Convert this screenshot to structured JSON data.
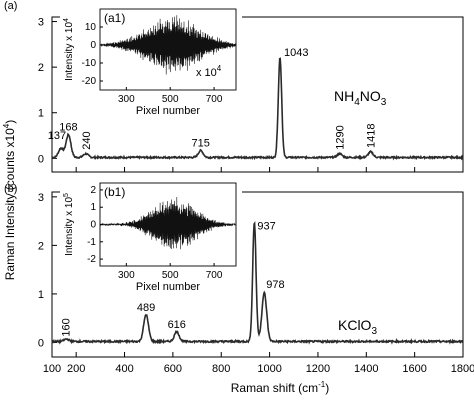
{
  "figure": {
    "ylabel": "Raman Intensity (counts x10",
    "ylabel_exp": "4",
    "ylabel_close": ")",
    "xlabel": "Raman shift (cm",
    "xlabel_exp": "-1",
    "xlabel_close": ")"
  },
  "chart_data": [
    {
      "type": "line",
      "panel_label": "(a)",
      "compound": {
        "base1": "NH",
        "sub1": "4",
        "base2": "NO",
        "sub2": "3"
      },
      "xlim": [
        100,
        1800
      ],
      "ylim": [
        -0.3,
        3.1
      ],
      "yticks": [
        0,
        1,
        2,
        3
      ],
      "series": [
        {
          "color": "#2b2b2b"
        }
      ],
      "peaks": [
        {
          "x": 137,
          "height": 0.2,
          "label": "137"
        },
        {
          "x": 168,
          "height": 0.5,
          "label": "168"
        },
        {
          "x": 240,
          "height": 0.08,
          "label": "240"
        },
        {
          "x": 715,
          "height": 0.15,
          "label": "715"
        },
        {
          "x": 1043,
          "height": 2.2,
          "label": "1043"
        },
        {
          "x": 1290,
          "height": 0.08,
          "label": "1290"
        },
        {
          "x": 1418,
          "height": 0.12,
          "label": "1418"
        }
      ],
      "inset": {
        "label": "(a1)",
        "xlabel": "Pixel number",
        "ylabel": "Intensity x 10",
        "ylabel_exp": "4",
        "scale_note": "x 10",
        "scale_note_exp": "4",
        "xlim": [
          180,
          800
        ],
        "ylim": [
          -25,
          20
        ],
        "xticks": [
          300,
          500,
          700
        ],
        "yticks": [
          10,
          0,
          -10,
          -20
        ],
        "center": 510,
        "amplitude": 17,
        "envelope_width": 120
      }
    },
    {
      "type": "line",
      "panel_label": "(b)",
      "compound": {
        "base1": "KClO",
        "sub1": "3",
        "base2": "",
        "sub2": ""
      },
      "xlim": [
        100,
        1800
      ],
      "ylim": [
        -0.3,
        3.1
      ],
      "yticks": [
        0,
        1,
        2,
        3
      ],
      "xticks": [
        100,
        200,
        400,
        600,
        800,
        1000,
        1200,
        1400,
        1600,
        1800
      ],
      "series": [
        {
          "color": "#2b2b2b"
        }
      ],
      "peaks": [
        {
          "x": 160,
          "height": 0.05,
          "label": "160"
        },
        {
          "x": 489,
          "height": 0.55,
          "label": "489"
        },
        {
          "x": 616,
          "height": 0.2,
          "label": "616"
        },
        {
          "x": 937,
          "height": 2.45,
          "label": "937"
        },
        {
          "x": 978,
          "height": 1.0,
          "label": "978"
        }
      ],
      "inset": {
        "label": "(b1)",
        "xlabel": "Pixel number",
        "ylabel": "Intensity x 10",
        "ylabel_exp": "5",
        "xlim": [
          180,
          800
        ],
        "ylim": [
          -2.4,
          2.4
        ],
        "xticks": [
          300,
          500,
          700
        ],
        "yticks": [
          2,
          1,
          0,
          -1,
          -2
        ],
        "center": 520,
        "amplitude": 1.7,
        "envelope_width": 95
      }
    }
  ]
}
